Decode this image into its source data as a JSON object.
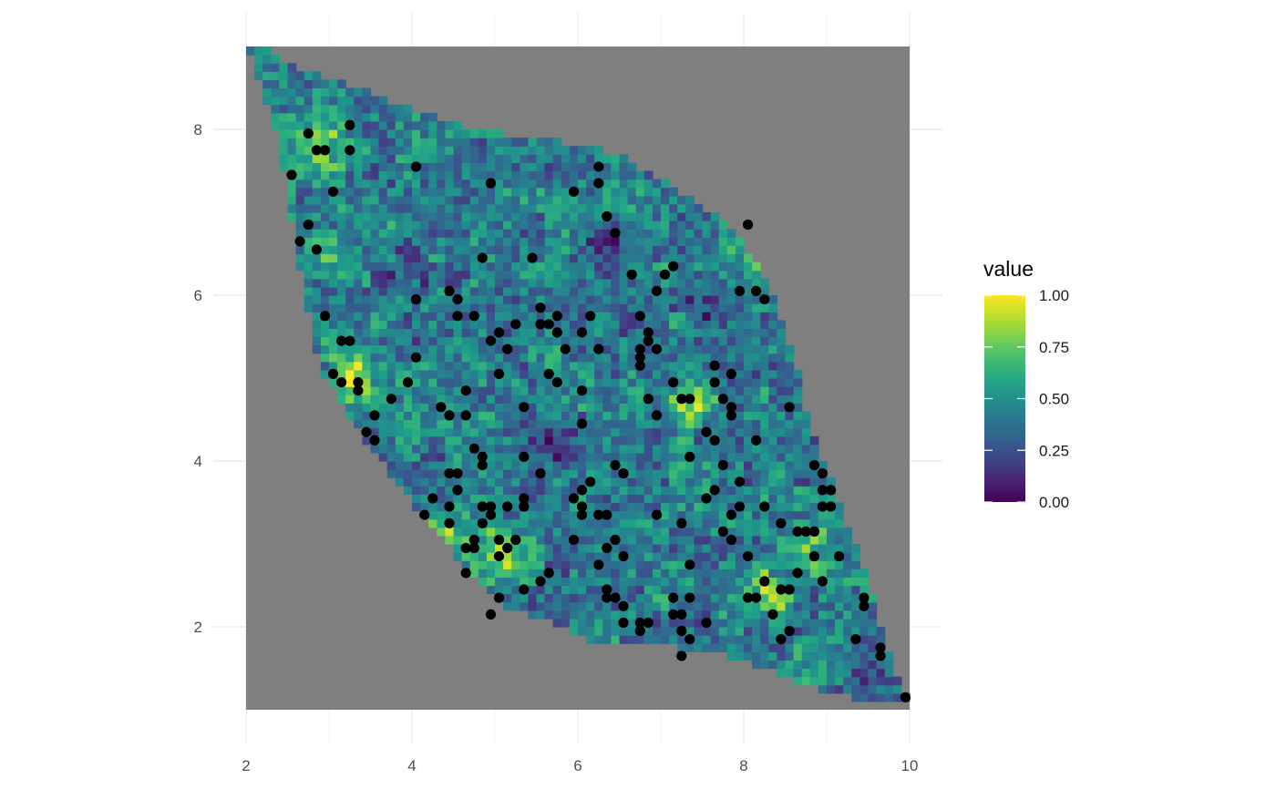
{
  "chart_data": {
    "type": "heatmap",
    "title": "",
    "xlabel": "",
    "ylabel": "",
    "xlim": [
      2,
      10
    ],
    "ylim": [
      1,
      9
    ],
    "x_ticks": [
      2,
      4,
      6,
      8,
      10
    ],
    "y_ticks": [
      2,
      4,
      6,
      8
    ],
    "x_tick_labels": [
      "2",
      "4",
      "6",
      "8",
      "10"
    ],
    "y_tick_labels": [
      "2",
      "4",
      "6",
      "8"
    ],
    "grid": true,
    "panel_background": "#7f7f7f",
    "region_polygon": [
      [
        2,
        9
      ],
      [
        2.2,
        9
      ],
      [
        2.5,
        8.8
      ],
      [
        3.6,
        8.4
      ],
      [
        4.7,
        8.0
      ],
      [
        5.6,
        7.9
      ],
      [
        6.5,
        7.7
      ],
      [
        7.3,
        7.2
      ],
      [
        7.9,
        6.8
      ],
      [
        8.3,
        6.1
      ],
      [
        8.6,
        5.3
      ],
      [
        8.75,
        4.6
      ],
      [
        9.0,
        3.9
      ],
      [
        9.5,
        2.6
      ],
      [
        9.8,
        1.5
      ],
      [
        10,
        1.15
      ],
      [
        9.7,
        1.1
      ],
      [
        9.0,
        1.2
      ],
      [
        8.0,
        1.6
      ],
      [
        7.0,
        1.8
      ],
      [
        6.2,
        1.8
      ],
      [
        5.6,
        2.1
      ],
      [
        5.0,
        2.3
      ],
      [
        4.5,
        2.9
      ],
      [
        4.0,
        3.5
      ],
      [
        3.4,
        4.3
      ],
      [
        2.9,
        5.1
      ],
      [
        2.7,
        6.0
      ],
      [
        2.5,
        7.2
      ],
      [
        2.35,
        8.0
      ],
      [
        2.0,
        9.0
      ]
    ],
    "cell_size": 0.1,
    "hotspots": [
      {
        "x": 5.1,
        "y": 2.9,
        "value": 0.95
      },
      {
        "x": 4.3,
        "y": 3.1,
        "value": 0.85
      },
      {
        "x": 3.3,
        "y": 5.0,
        "value": 0.88
      },
      {
        "x": 2.9,
        "y": 7.8,
        "value": 0.85
      },
      {
        "x": 7.3,
        "y": 4.7,
        "value": 0.9
      },
      {
        "x": 8.3,
        "y": 2.4,
        "value": 0.88
      },
      {
        "x": 8.8,
        "y": 3.0,
        "value": 0.82
      },
      {
        "x": 8.1,
        "y": 6.7,
        "value": 0.85
      },
      {
        "x": 6.0,
        "y": 7.0,
        "value": 0.7
      },
      {
        "x": 2.9,
        "y": 6.6,
        "value": 0.7
      }
    ],
    "lowspots": [
      {
        "x": 5.6,
        "y": 8.3,
        "value": 0.1
      },
      {
        "x": 4.6,
        "y": 8.4,
        "value": 0.12
      },
      {
        "x": 7.6,
        "y": 5.9,
        "value": 0.15
      },
      {
        "x": 6.3,
        "y": 6.6,
        "value": 0.2
      },
      {
        "x": 5.7,
        "y": 4.2,
        "value": 0.15
      },
      {
        "x": 9.5,
        "y": 1.4,
        "value": 0.2
      },
      {
        "x": 3.9,
        "y": 6.2,
        "value": 0.25
      }
    ],
    "points": [
      [
        2.55,
        7.45
      ],
      [
        2.65,
        6.65
      ],
      [
        2.75,
        7.95
      ],
      [
        2.75,
        6.85
      ],
      [
        2.85,
        7.75
      ],
      [
        2.85,
        6.55
      ],
      [
        2.95,
        7.75
      ],
      [
        3.05,
        7.25
      ],
      [
        3.25,
        8.05
      ],
      [
        3.25,
        7.75
      ],
      [
        2.95,
        5.75
      ],
      [
        3.15,
        5.45
      ],
      [
        3.25,
        5.45
      ],
      [
        3.05,
        5.05
      ],
      [
        3.15,
        4.95
      ],
      [
        3.35,
        4.95
      ],
      [
        3.35,
        4.85
      ],
      [
        3.45,
        4.35
      ],
      [
        3.55,
        4.25
      ],
      [
        3.55,
        4.55
      ],
      [
        3.75,
        4.75
      ],
      [
        3.95,
        4.95
      ],
      [
        4.05,
        5.25
      ],
      [
        4.05,
        5.95
      ],
      [
        4.05,
        7.55
      ],
      [
        4.15,
        3.35
      ],
      [
        4.25,
        3.55
      ],
      [
        4.35,
        4.65
      ],
      [
        4.45,
        4.55
      ],
      [
        4.45,
        3.85
      ],
      [
        4.45,
        3.45
      ],
      [
        4.45,
        3.25
      ],
      [
        4.55,
        3.85
      ],
      [
        4.55,
        3.65
      ],
      [
        4.45,
        6.05
      ],
      [
        4.55,
        5.95
      ],
      [
        4.55,
        5.75
      ],
      [
        4.65,
        4.85
      ],
      [
        4.65,
        4.55
      ],
      [
        4.65,
        2.95
      ],
      [
        4.65,
        2.65
      ],
      [
        4.75,
        3.05
      ],
      [
        4.75,
        2.95
      ],
      [
        4.75,
        4.15
      ],
      [
        4.75,
        5.75
      ],
      [
        4.85,
        6.45
      ],
      [
        4.85,
        4.05
      ],
      [
        4.85,
        3.95
      ],
      [
        4.85,
        3.45
      ],
      [
        4.85,
        3.25
      ],
      [
        4.95,
        3.45
      ],
      [
        4.95,
        3.35
      ],
      [
        4.95,
        2.15
      ],
      [
        4.95,
        5.45
      ],
      [
        4.95,
        7.35
      ],
      [
        5.05,
        5.55
      ],
      [
        5.05,
        5.05
      ],
      [
        5.05,
        3.05
      ],
      [
        5.05,
        2.85
      ],
      [
        5.05,
        2.35
      ],
      [
        5.15,
        5.35
      ],
      [
        5.15,
        3.45
      ],
      [
        5.15,
        2.95
      ],
      [
        5.25,
        5.65
      ],
      [
        5.25,
        3.05
      ],
      [
        5.35,
        4.65
      ],
      [
        5.35,
        4.05
      ],
      [
        5.35,
        3.55
      ],
      [
        5.35,
        3.45
      ],
      [
        5.35,
        2.45
      ],
      [
        5.45,
        6.45
      ],
      [
        5.55,
        5.85
      ],
      [
        5.55,
        5.65
      ],
      [
        5.55,
        3.85
      ],
      [
        5.55,
        2.55
      ],
      [
        5.65,
        5.65
      ],
      [
        5.65,
        5.05
      ],
      [
        5.65,
        2.65
      ],
      [
        5.75,
        5.75
      ],
      [
        5.75,
        5.55
      ],
      [
        5.75,
        4.95
      ],
      [
        5.85,
        5.35
      ],
      [
        5.95,
        7.25
      ],
      [
        5.95,
        3.55
      ],
      [
        5.95,
        3.05
      ],
      [
        6.05,
        5.55
      ],
      [
        6.05,
        4.85
      ],
      [
        6.05,
        4.45
      ],
      [
        6.05,
        3.65
      ],
      [
        6.05,
        3.45
      ],
      [
        6.05,
        3.35
      ],
      [
        6.15,
        5.75
      ],
      [
        6.15,
        3.75
      ],
      [
        6.25,
        7.55
      ],
      [
        6.25,
        7.35
      ],
      [
        6.25,
        5.35
      ],
      [
        6.25,
        3.35
      ],
      [
        6.25,
        2.75
      ],
      [
        6.35,
        6.95
      ],
      [
        6.35,
        3.35
      ],
      [
        6.35,
        2.95
      ],
      [
        6.35,
        2.45
      ],
      [
        6.35,
        2.35
      ],
      [
        6.45,
        6.75
      ],
      [
        6.45,
        3.95
      ],
      [
        6.45,
        3.05
      ],
      [
        6.45,
        2.35
      ],
      [
        6.55,
        3.85
      ],
      [
        6.55,
        2.85
      ],
      [
        6.55,
        2.25
      ],
      [
        6.55,
        2.05
      ],
      [
        6.65,
        6.25
      ],
      [
        6.75,
        5.75
      ],
      [
        6.75,
        5.35
      ],
      [
        6.75,
        5.25
      ],
      [
        6.75,
        5.15
      ],
      [
        6.75,
        2.05
      ],
      [
        6.75,
        1.95
      ],
      [
        6.85,
        5.55
      ],
      [
        6.85,
        5.45
      ],
      [
        6.85,
        4.75
      ],
      [
        6.85,
        2.05
      ],
      [
        6.95,
        6.05
      ],
      [
        6.95,
        5.35
      ],
      [
        6.95,
        4.55
      ],
      [
        6.95,
        3.35
      ],
      [
        7.05,
        6.25
      ],
      [
        7.15,
        6.35
      ],
      [
        7.15,
        4.95
      ],
      [
        7.15,
        2.35
      ],
      [
        7.15,
        2.15
      ],
      [
        7.25,
        4.75
      ],
      [
        7.25,
        3.25
      ],
      [
        7.25,
        2.15
      ],
      [
        7.25,
        1.95
      ],
      [
        7.25,
        1.65
      ],
      [
        7.35,
        4.75
      ],
      [
        7.35,
        4.05
      ],
      [
        7.35,
        2.75
      ],
      [
        7.35,
        2.35
      ],
      [
        7.35,
        1.85
      ],
      [
        7.55,
        4.35
      ],
      [
        7.55,
        3.55
      ],
      [
        7.55,
        2.05
      ],
      [
        7.65,
        5.15
      ],
      [
        7.65,
        4.95
      ],
      [
        7.65,
        4.25
      ],
      [
        7.65,
        3.65
      ],
      [
        7.75,
        4.75
      ],
      [
        7.75,
        3.95
      ],
      [
        7.75,
        3.15
      ],
      [
        7.85,
        5.05
      ],
      [
        7.85,
        4.65
      ],
      [
        7.85,
        4.55
      ],
      [
        7.85,
        3.35
      ],
      [
        7.85,
        3.05
      ],
      [
        7.95,
        6.05
      ],
      [
        7.95,
        3.75
      ],
      [
        7.95,
        3.45
      ],
      [
        8.05,
        6.85
      ],
      [
        8.05,
        2.85
      ],
      [
        8.05,
        2.35
      ],
      [
        8.15,
        6.05
      ],
      [
        8.15,
        4.25
      ],
      [
        8.15,
        2.35
      ],
      [
        8.25,
        5.95
      ],
      [
        8.25,
        3.45
      ],
      [
        8.25,
        2.55
      ],
      [
        8.35,
        2.15
      ],
      [
        8.45,
        3.25
      ],
      [
        8.45,
        2.45
      ],
      [
        8.45,
        1.85
      ],
      [
        8.55,
        4.65
      ],
      [
        8.55,
        2.45
      ],
      [
        8.55,
        1.95
      ],
      [
        8.65,
        3.15
      ],
      [
        8.65,
        2.65
      ],
      [
        8.75,
        3.15
      ],
      [
        8.85,
        3.95
      ],
      [
        8.85,
        3.15
      ],
      [
        8.85,
        2.85
      ],
      [
        8.95,
        3.85
      ],
      [
        8.95,
        3.65
      ],
      [
        8.95,
        3.45
      ],
      [
        8.95,
        2.55
      ],
      [
        9.05,
        3.65
      ],
      [
        9.05,
        3.45
      ],
      [
        9.15,
        2.85
      ],
      [
        9.35,
        1.85
      ],
      [
        9.45,
        2.35
      ],
      [
        9.45,
        2.25
      ],
      [
        9.65,
        1.75
      ],
      [
        9.65,
        1.65
      ],
      [
        9.95,
        1.15
      ]
    ],
    "point_color": "#000000",
    "legend": {
      "title": "value",
      "placement": "right",
      "breaks": [
        0.0,
        0.25,
        0.5,
        0.75,
        1.0
      ],
      "labels": [
        "0.00",
        "0.25",
        "0.50",
        "0.75",
        "1.00"
      ],
      "colors": [
        "#440154",
        "#3b528b",
        "#21908c",
        "#5dc963",
        "#fde725"
      ]
    }
  }
}
